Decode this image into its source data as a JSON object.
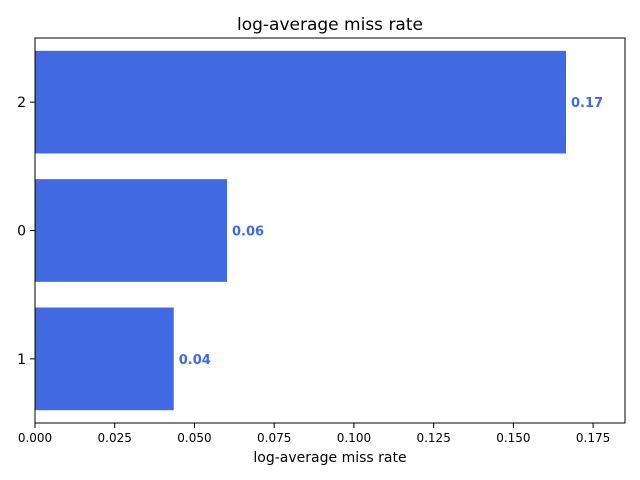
{
  "chart_data": {
    "type": "bar",
    "orientation": "horizontal",
    "title": "log-average miss rate",
    "xlabel": "log-average miss rate",
    "ylabel": "",
    "categories": [
      "1",
      "0",
      "2"
    ],
    "values": [
      0.0435,
      0.0602,
      0.1665
    ],
    "data_labels": [
      "0.04",
      "0.06",
      "0.17"
    ],
    "xlim": [
      0,
      0.185
    ],
    "xticks": [
      0.0,
      0.025,
      0.05,
      0.075,
      0.1,
      0.125,
      0.15,
      0.175
    ],
    "xtick_labels": [
      "0.000",
      "0.025",
      "0.050",
      "0.075",
      "0.100",
      "0.125",
      "0.150",
      "0.175"
    ],
    "bar_color": "#4169e1",
    "grid": false,
    "legend": "none"
  }
}
